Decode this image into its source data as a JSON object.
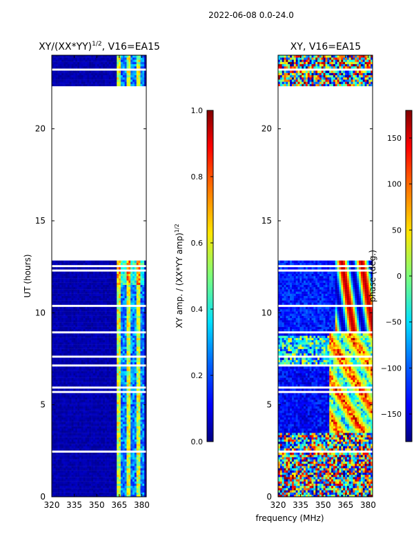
{
  "suptitle": "2022-06-08 0.0-24.0",
  "chart_data": [
    {
      "type": "heatmap",
      "title_main": "XY/(XX*YY)",
      "title_sup": "1/2",
      "title_rest": ", V16=EA15",
      "xlabel": "",
      "ylabel": "UT (hours)",
      "xlim": [
        320,
        383
      ],
      "ylim": [
        0,
        24
      ],
      "xticks": [
        320,
        335,
        350,
        365,
        380
      ],
      "yticks": [
        0,
        5,
        10,
        15,
        20
      ],
      "colorbar": {
        "label_main": "XY amp. / (XX*YY amp)",
        "label_sup": "1/2",
        "range": [
          0.0,
          1.0
        ],
        "ticks": [
          {
            "value": 0.0,
            "label": "0.0"
          },
          {
            "value": 0.2,
            "label": "0.2"
          },
          {
            "value": 0.4,
            "label": "0.4"
          },
          {
            "value": 0.6,
            "label": "0.6"
          },
          {
            "value": 0.8,
            "label": "0.8"
          },
          {
            "value": 1.0,
            "label": "1.0"
          }
        ]
      },
      "data_time_ranges_hours": [
        [
          0,
          12.8
        ],
        [
          22.3,
          24
        ]
      ],
      "bright_band_mhz": [
        363,
        382
      ]
    },
    {
      "type": "heatmap",
      "title": "XY, V16=EA15",
      "xlabel": "frequency (MHz)",
      "ylabel": "",
      "xlim": [
        320,
        383
      ],
      "ylim": [
        0,
        24
      ],
      "xticks": [
        320,
        335,
        350,
        365,
        380
      ],
      "yticks": [
        0,
        5,
        10,
        15,
        20
      ],
      "colorbar": {
        "label": "phase (deg.)",
        "range": [
          -180,
          180
        ],
        "ticks": [
          {
            "value": 150,
            "label": "150"
          },
          {
            "value": 100,
            "label": "100"
          },
          {
            "value": 50,
            "label": "50"
          },
          {
            "value": 0,
            "label": "0"
          },
          {
            "value": -50,
            "label": "−50"
          },
          {
            "value": -100,
            "label": "−100"
          },
          {
            "value": -150,
            "label": "−150"
          }
        ]
      },
      "data_time_ranges_hours": [
        [
          0,
          12.8
        ],
        [
          22.3,
          24
        ]
      ]
    }
  ],
  "colormap": [
    "#000080",
    "#0000ff",
    "#0080ff",
    "#00ffff",
    "#80ff80",
    "#ffff00",
    "#ff8000",
    "#ff0000",
    "#800000"
  ]
}
